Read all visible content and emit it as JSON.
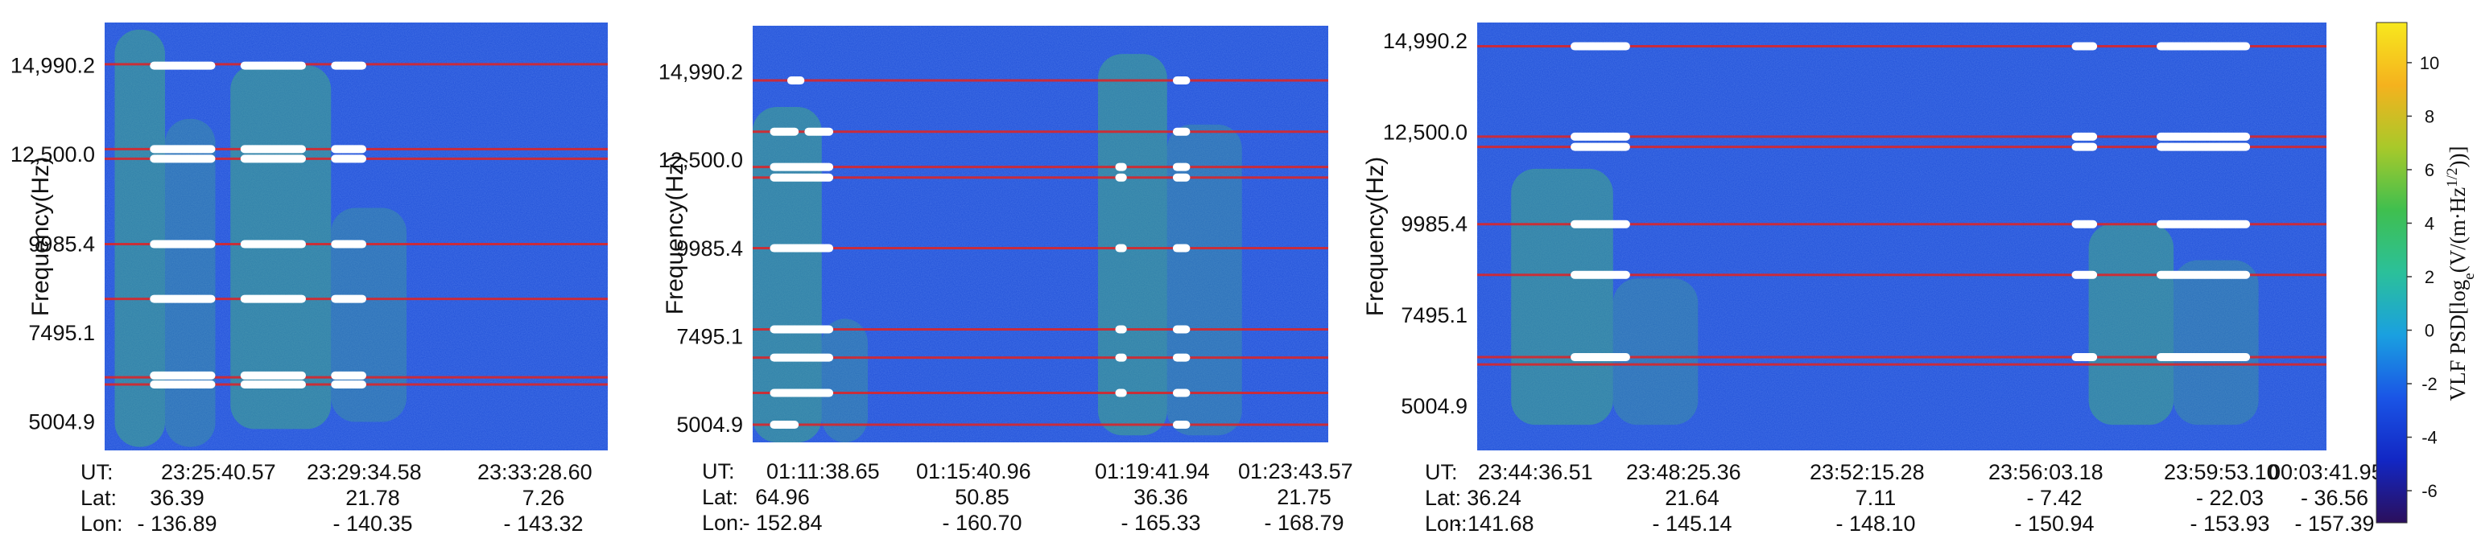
{
  "colors": {
    "background_blue": "#1f4fd8",
    "interference_line": "#d9262b",
    "saturated": "#ffffff",
    "emission": "#46c06a"
  },
  "chart_data": [
    {
      "type": "heatmap",
      "title": "",
      "ylabel": "Frequency(Hz)",
      "yticks": [
        "14,990.2",
        "12,500.0",
        "9985.4",
        "7495.1",
        "5004.9"
      ],
      "ytick_values": [
        14990.2,
        12500.0,
        9985.4,
        7495.1,
        5004.9
      ],
      "ylim": [
        4200,
        16200
      ],
      "info_labels": [
        "UT:",
        "Lat:",
        "Lon:"
      ],
      "ut": [
        "23:25:40.57",
        "23:29:34.58",
        "23:33:28.60"
      ],
      "lat": [
        "36.39",
        "21.78",
        "7.26"
      ],
      "lon": [
        "- 136.89",
        "- 140.35",
        "- 143.32"
      ],
      "interference_lines_hz": [
        15030,
        12650,
        12380,
        9985,
        8450,
        6250,
        6050
      ],
      "saturated_bands": [
        {
          "freq": 14990,
          "times": [
            [
              0.09,
              0.22
            ],
            [
              0.27,
              0.4
            ],
            [
              0.45,
              0.52
            ]
          ]
        },
        {
          "freq": 12650,
          "times": [
            [
              0.09,
              0.22
            ],
            [
              0.27,
              0.4
            ],
            [
              0.45,
              0.52
            ]
          ]
        },
        {
          "freq": 12380,
          "times": [
            [
              0.09,
              0.22
            ],
            [
              0.27,
              0.4
            ],
            [
              0.45,
              0.52
            ]
          ]
        },
        {
          "freq": 9985,
          "times": [
            [
              0.09,
              0.22
            ],
            [
              0.27,
              0.4
            ],
            [
              0.45,
              0.52
            ]
          ]
        },
        {
          "freq": 8450,
          "times": [
            [
              0.09,
              0.22
            ],
            [
              0.27,
              0.4
            ],
            [
              0.45,
              0.52
            ]
          ]
        },
        {
          "freq": 6300,
          "times": [
            [
              0.09,
              0.22
            ],
            [
              0.27,
              0.4
            ],
            [
              0.45,
              0.52
            ]
          ]
        },
        {
          "freq": 6050,
          "times": [
            [
              0.09,
              0.22
            ],
            [
              0.27,
              0.4
            ],
            [
              0.45,
              0.52
            ]
          ]
        }
      ]
    },
    {
      "type": "heatmap",
      "title": "",
      "ylabel": "Frequency(Hz)",
      "yticks": [
        "14,990.2",
        "12,500.0",
        "9985.4",
        "7495.1",
        "5004.9"
      ],
      "ytick_values": [
        14990.2,
        12500.0,
        9985.4,
        7495.1,
        5004.9
      ],
      "ylim": [
        4500,
        16300
      ],
      "info_labels": [
        "UT:",
        "Lat:",
        "Lon:"
      ],
      "ut": [
        "01:11:38.65",
        "01:15:40.96",
        "01:19:41.94",
        "01:23:43.57"
      ],
      "lat": [
        "64.96",
        "50.85",
        "36.36",
        "21.75"
      ],
      "lon": [
        "- 152.84",
        "- 160.70",
        "- 165.33",
        "- 168.79"
      ],
      "interference_lines_hz": [
        14750,
        13300,
        12300,
        12000,
        10000,
        7700,
        6900,
        5900,
        5000
      ],
      "saturated_bands": [
        {
          "freq": 14750,
          "times": [
            [
              0.06,
              0.09
            ],
            [
              0.73,
              0.76
            ]
          ]
        },
        {
          "freq": 13300,
          "times": [
            [
              0.03,
              0.08
            ],
            [
              0.09,
              0.14
            ],
            [
              0.73,
              0.76
            ]
          ]
        },
        {
          "freq": 12300,
          "times": [
            [
              0.03,
              0.14
            ],
            [
              0.63,
              0.65
            ],
            [
              0.73,
              0.76
            ]
          ]
        },
        {
          "freq": 12000,
          "times": [
            [
              0.03,
              0.14
            ],
            [
              0.63,
              0.65
            ],
            [
              0.73,
              0.76
            ]
          ]
        },
        {
          "freq": 10000,
          "times": [
            [
              0.03,
              0.14
            ],
            [
              0.63,
              0.65
            ],
            [
              0.73,
              0.76
            ]
          ]
        },
        {
          "freq": 7700,
          "times": [
            [
              0.03,
              0.14
            ],
            [
              0.63,
              0.65
            ],
            [
              0.73,
              0.76
            ]
          ]
        },
        {
          "freq": 6900,
          "times": [
            [
              0.03,
              0.14
            ],
            [
              0.63,
              0.65
            ],
            [
              0.73,
              0.76
            ]
          ]
        },
        {
          "freq": 5900,
          "times": [
            [
              0.03,
              0.14
            ],
            [
              0.63,
              0.65
            ],
            [
              0.73,
              0.76
            ]
          ]
        },
        {
          "freq": 5000,
          "times": [
            [
              0.03,
              0.08
            ],
            [
              0.73,
              0.76
            ]
          ]
        }
      ]
    },
    {
      "type": "heatmap",
      "title": "",
      "ylabel": "Frequency(Hz)",
      "yticks": [
        "14,990.2",
        "12,500.0",
        "9985.4",
        "7495.1",
        "5004.9"
      ],
      "ytick_values": [
        14990.2,
        12500.0,
        9985.4,
        7495.1,
        5004.9
      ],
      "ylim": [
        3800,
        15500
      ],
      "info_labels": [
        "UT:",
        "Lat:",
        "Lon:"
      ],
      "ut": [
        "23:44:36.51",
        "23:48:25.36",
        "23:52:15.28",
        "23:56:03.18",
        "23:59:53.10",
        "00:03:41.95"
      ],
      "lat": [
        "36.24",
        "21.64",
        "7.11",
        "- 7.42",
        "- 22.03",
        "- 36.56"
      ],
      "lon": [
        "- 141.68",
        "- 145.14",
        "- 148.10",
        "- 150.94",
        "- 153.93",
        "- 157.39"
      ],
      "interference_lines_hz": [
        14850,
        12380,
        12100,
        9985,
        8600,
        6350,
        6150
      ],
      "saturated_bands": [
        {
          "freq": 14850,
          "times": [
            [
              0.11,
              0.18
            ],
            [
              0.7,
              0.73
            ],
            [
              0.8,
              0.91
            ]
          ]
        },
        {
          "freq": 12380,
          "times": [
            [
              0.11,
              0.18
            ],
            [
              0.7,
              0.73
            ],
            [
              0.8,
              0.91
            ]
          ]
        },
        {
          "freq": 12100,
          "times": [
            [
              0.11,
              0.18
            ],
            [
              0.7,
              0.73
            ],
            [
              0.8,
              0.91
            ]
          ]
        },
        {
          "freq": 9985,
          "times": [
            [
              0.11,
              0.18
            ],
            [
              0.7,
              0.73
            ],
            [
              0.8,
              0.91
            ]
          ]
        },
        {
          "freq": 8600,
          "times": [
            [
              0.11,
              0.18
            ],
            [
              0.7,
              0.73
            ],
            [
              0.8,
              0.91
            ]
          ]
        },
        {
          "freq": 6350,
          "times": [
            [
              0.11,
              0.18
            ],
            [
              0.7,
              0.73
            ],
            [
              0.8,
              0.91
            ]
          ]
        }
      ]
    }
  ],
  "colorbar": {
    "label": "VLF PSD[log",
    "label_sub": "e",
    "label_rest": "(V/(m·Hz",
    "label_sup": "1/2",
    "label_end": "))]",
    "ticks": [
      "10",
      "8",
      "6",
      "4",
      "2",
      "0",
      "-2",
      "-4",
      "-6"
    ],
    "tick_values": [
      10,
      8,
      6,
      4,
      2,
      0,
      -2,
      -4,
      -6
    ],
    "range": [
      -7.2,
      11.5
    ],
    "stops": [
      "#2b0f5c",
      "#1227c4",
      "#1a55e6",
      "#1aa0e0",
      "#2bc09a",
      "#3fbf4f",
      "#a8c92a",
      "#f5b21e",
      "#f7e81e"
    ]
  }
}
